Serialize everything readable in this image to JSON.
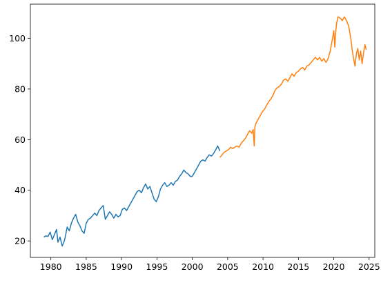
{
  "chart_data": {
    "type": "line",
    "title": "",
    "xlabel": "",
    "ylabel": "",
    "xlim": [
      1977.1,
      2025.8
    ],
    "ylim": [
      13.5,
      113.5
    ],
    "xticks": [
      1980,
      1985,
      1990,
      1995,
      2000,
      2005,
      2010,
      2015,
      2020,
      2025
    ],
    "yticks": [
      20,
      40,
      60,
      80,
      100
    ],
    "grid": false,
    "legend": "none",
    "series": [
      {
        "color": "#1f77b4",
        "x": [
          1979.0,
          1979.3,
          1979.6,
          1979.9,
          1980.2,
          1980.5,
          1980.8,
          1981.0,
          1981.3,
          1981.6,
          1981.9,
          1982.1,
          1982.3,
          1982.6,
          1982.9,
          1983.2,
          1983.5,
          1983.8,
          1984.1,
          1984.4,
          1984.7,
          1985.0,
          1985.3,
          1985.6,
          1985.9,
          1986.2,
          1986.5,
          1986.8,
          1987.1,
          1987.4,
          1987.7,
          1988.0,
          1988.3,
          1988.6,
          1988.9,
          1989.2,
          1989.5,
          1989.8,
          1990.1,
          1990.4,
          1990.7,
          1991.0,
          1991.3,
          1991.6,
          1991.9,
          1992.2,
          1992.5,
          1992.8,
          1993.1,
          1993.4,
          1993.7,
          1994.0,
          1994.3,
          1994.6,
          1994.9,
          1995.2,
          1995.5,
          1995.8,
          1996.1,
          1996.4,
          1996.7,
          1997.0,
          1997.3,
          1997.6,
          1997.9,
          1998.2,
          1998.5,
          1998.8,
          1999.1,
          1999.4,
          1999.7,
          2000.0,
          2000.3,
          2000.6,
          2000.9,
          2001.2,
          2001.5,
          2001.8,
          2002.1,
          2002.4,
          2002.7,
          2003.0,
          2003.3,
          2003.6,
          2003.9
        ],
        "y": [
          21.5,
          22.0,
          21.8,
          23.5,
          20.5,
          22.5,
          24.5,
          19.5,
          21.5,
          18.0,
          20.0,
          22.5,
          25.5,
          24.0,
          27.0,
          29.0,
          30.5,
          27.5,
          26.0,
          24.0,
          23.0,
          27.0,
          28.5,
          29.0,
          30.0,
          31.0,
          30.0,
          32.0,
          33.0,
          34.0,
          28.5,
          30.0,
          31.5,
          30.5,
          29.0,
          30.5,
          29.5,
          30.0,
          32.5,
          33.0,
          32.0,
          33.5,
          35.0,
          36.5,
          38.0,
          39.5,
          40.0,
          39.0,
          41.0,
          42.5,
          40.5,
          41.5,
          39.0,
          36.5,
          35.5,
          37.5,
          40.5,
          42.0,
          43.0,
          41.5,
          42.0,
          43.0,
          42.0,
          43.5,
          44.0,
          45.5,
          46.5,
          48.0,
          47.0,
          46.5,
          45.5,
          45.5,
          47.0,
          48.5,
          50.0,
          51.5,
          52.0,
          51.5,
          53.0,
          54.0,
          53.5,
          54.5,
          56.0,
          57.5,
          55.5
        ]
      },
      {
        "color": "#ff7f0e",
        "x": [
          2003.9,
          2004.2,
          2004.5,
          2004.8,
          2005.1,
          2005.4,
          2005.7,
          2006.0,
          2006.3,
          2006.6,
          2006.9,
          2007.2,
          2007.5,
          2007.8,
          2008.1,
          2008.4,
          2008.6,
          2008.75,
          2008.85,
          2009.0,
          2009.3,
          2009.6,
          2009.9,
          2010.2,
          2010.5,
          2010.8,
          2011.1,
          2011.4,
          2011.7,
          2012.0,
          2012.3,
          2012.6,
          2012.9,
          2013.2,
          2013.5,
          2013.8,
          2014.1,
          2014.4,
          2014.7,
          2015.0,
          2015.3,
          2015.6,
          2015.9,
          2016.2,
          2016.5,
          2016.8,
          2017.1,
          2017.4,
          2017.7,
          2018.0,
          2018.3,
          2018.6,
          2018.9,
          2019.2,
          2019.5,
          2019.8,
          2020.0,
          2020.15,
          2020.25,
          2020.4,
          2020.6,
          2020.9,
          2021.2,
          2021.5,
          2021.8,
          2022.1,
          2022.4,
          2022.6,
          2022.8,
          2023.0,
          2023.2,
          2023.4,
          2023.6,
          2023.8,
          2024.0,
          2024.2,
          2024.4,
          2024.6
        ],
        "y": [
          53.0,
          54.0,
          55.0,
          55.5,
          56.0,
          57.0,
          56.5,
          57.0,
          57.5,
          57.0,
          58.5,
          59.5,
          60.5,
          62.0,
          63.5,
          62.5,
          64.0,
          57.5,
          65.0,
          66.5,
          68.0,
          69.5,
          71.0,
          72.0,
          73.5,
          75.0,
          76.0,
          77.5,
          79.5,
          80.5,
          81.0,
          82.0,
          83.5,
          84.0,
          83.0,
          84.5,
          86.0,
          85.0,
          86.5,
          87.0,
          88.0,
          88.5,
          87.5,
          89.0,
          89.5,
          90.5,
          91.5,
          92.5,
          91.5,
          92.5,
          91.0,
          92.0,
          90.5,
          92.0,
          95.0,
          99.5,
          103.0,
          96.5,
          101.5,
          106.0,
          108.5,
          108.0,
          107.0,
          108.5,
          107.0,
          105.0,
          100.0,
          95.5,
          92.0,
          89.0,
          94.0,
          96.0,
          91.5,
          95.0,
          90.0,
          94.0,
          97.5,
          95.5
        ]
      }
    ]
  }
}
